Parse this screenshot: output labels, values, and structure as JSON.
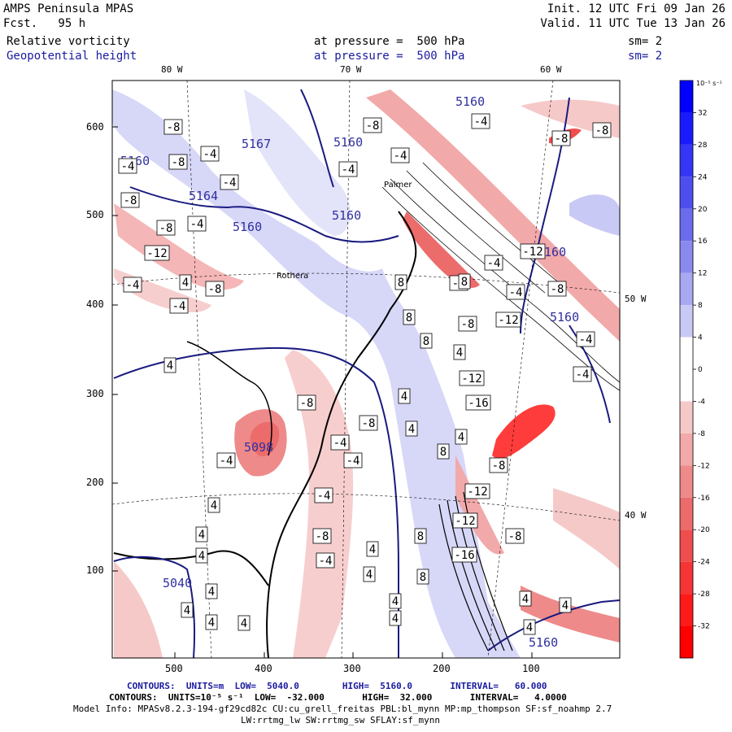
{
  "header": {
    "model": "AMPS Peninsula MPAS",
    "forecast": "Fcst.   95 h",
    "init": "Init. 12 UTC Fri 09 Jan 26",
    "valid": "Valid. 11 UTC Tue 13 Jan 26",
    "field1": {
      "name": "Relative vorticity",
      "level": "at pressure =  500 hPa",
      "smooth": "sm= 2"
    },
    "field2": {
      "name": "Geopotential height",
      "level": "at pressure =  500 hPa",
      "smooth": "sm= 2"
    }
  },
  "longitude_labels": {
    "top": [
      "80 W",
      "70 W",
      "60 W"
    ],
    "right": [
      "50 W",
      "40 W"
    ]
  },
  "axes": {
    "y_ticks": [
      "600",
      "500",
      "400",
      "300",
      "200",
      "100"
    ],
    "x_ticks": [
      "500",
      "400",
      "300",
      "200",
      "100"
    ]
  },
  "colorbar": {
    "units": "10⁻⁵ s⁻¹",
    "ticks": [
      "32",
      "28",
      "24",
      "20",
      "16",
      "12",
      "8",
      "4",
      "0",
      "-4",
      "-8",
      "-12",
      "-16",
      "-20",
      "-24",
      "-28",
      "-32"
    ],
    "colors": [
      "#0000ff",
      "#1a1aff",
      "#3535f5",
      "#4e4ef0",
      "#6b6bec",
      "#8a8aee",
      "#a9a9f2",
      "#c9c9f6",
      "#ffffff",
      "#ffffff",
      "#f6c9c9",
      "#f2a9a9",
      "#ee8a8a",
      "#ec6b6b",
      "#f04e4e",
      "#f53535",
      "#ff1a1a",
      "#ff0000"
    ]
  },
  "footer": {
    "line1": "CONTOURS:  UNITS=m  LOW=  5040.0        HIGH=  5160.0       INTERVAL=   60.000",
    "line2": "CONTOURS:  UNITS=10⁻⁵ s⁻¹  LOW=  -32.000       HIGH=  32.000       INTERVAL=   4.0000",
    "line3": "Model Info: MPASv8.2.3-194-gf29cd82c CU:cu_grell_freitas PBL:bl_mynn MP:mp_thompson SF:sf_noahmp 2.7",
    "line4": "LW:rrtmg_lw SW:rrtmg_sw SFLAY:sf_mynn"
  },
  "map": {
    "height_labels": [
      "5167",
      "5160",
      "5164",
      "5160",
      "5160",
      "5160",
      "5160",
      "5040",
      "5160",
      "5160",
      "5098",
      "5160"
    ],
    "vorticity_labels": [
      "-8",
      "-4",
      "-8",
      "-4",
      "-4",
      "-8",
      "-4",
      "-8",
      "-12",
      "-4",
      "-8",
      "-4",
      "-8",
      "-4",
      "-4",
      "-4",
      "-8",
      "-8",
      "-12",
      "-4",
      "-8",
      "-4",
      "-12",
      "-8",
      "-8",
      "-4",
      "-4",
      "-12",
      "-16",
      "-8",
      "-8",
      "-4",
      "-4",
      "-4",
      "-8",
      "-12",
      "-4",
      "-8",
      "-16",
      "-12",
      "-8",
      "-4",
      "4",
      "4",
      "4",
      "4",
      "4",
      "4",
      "4",
      "4",
      "4",
      "8",
      "8",
      "8",
      "8",
      "4",
      "4",
      "4",
      "4",
      "8",
      "4",
      "8",
      "4",
      "4",
      "4",
      "8",
      "4",
      "4",
      "4"
    ],
    "place_labels": [
      "Palmer",
      "Rothera"
    ]
  }
}
